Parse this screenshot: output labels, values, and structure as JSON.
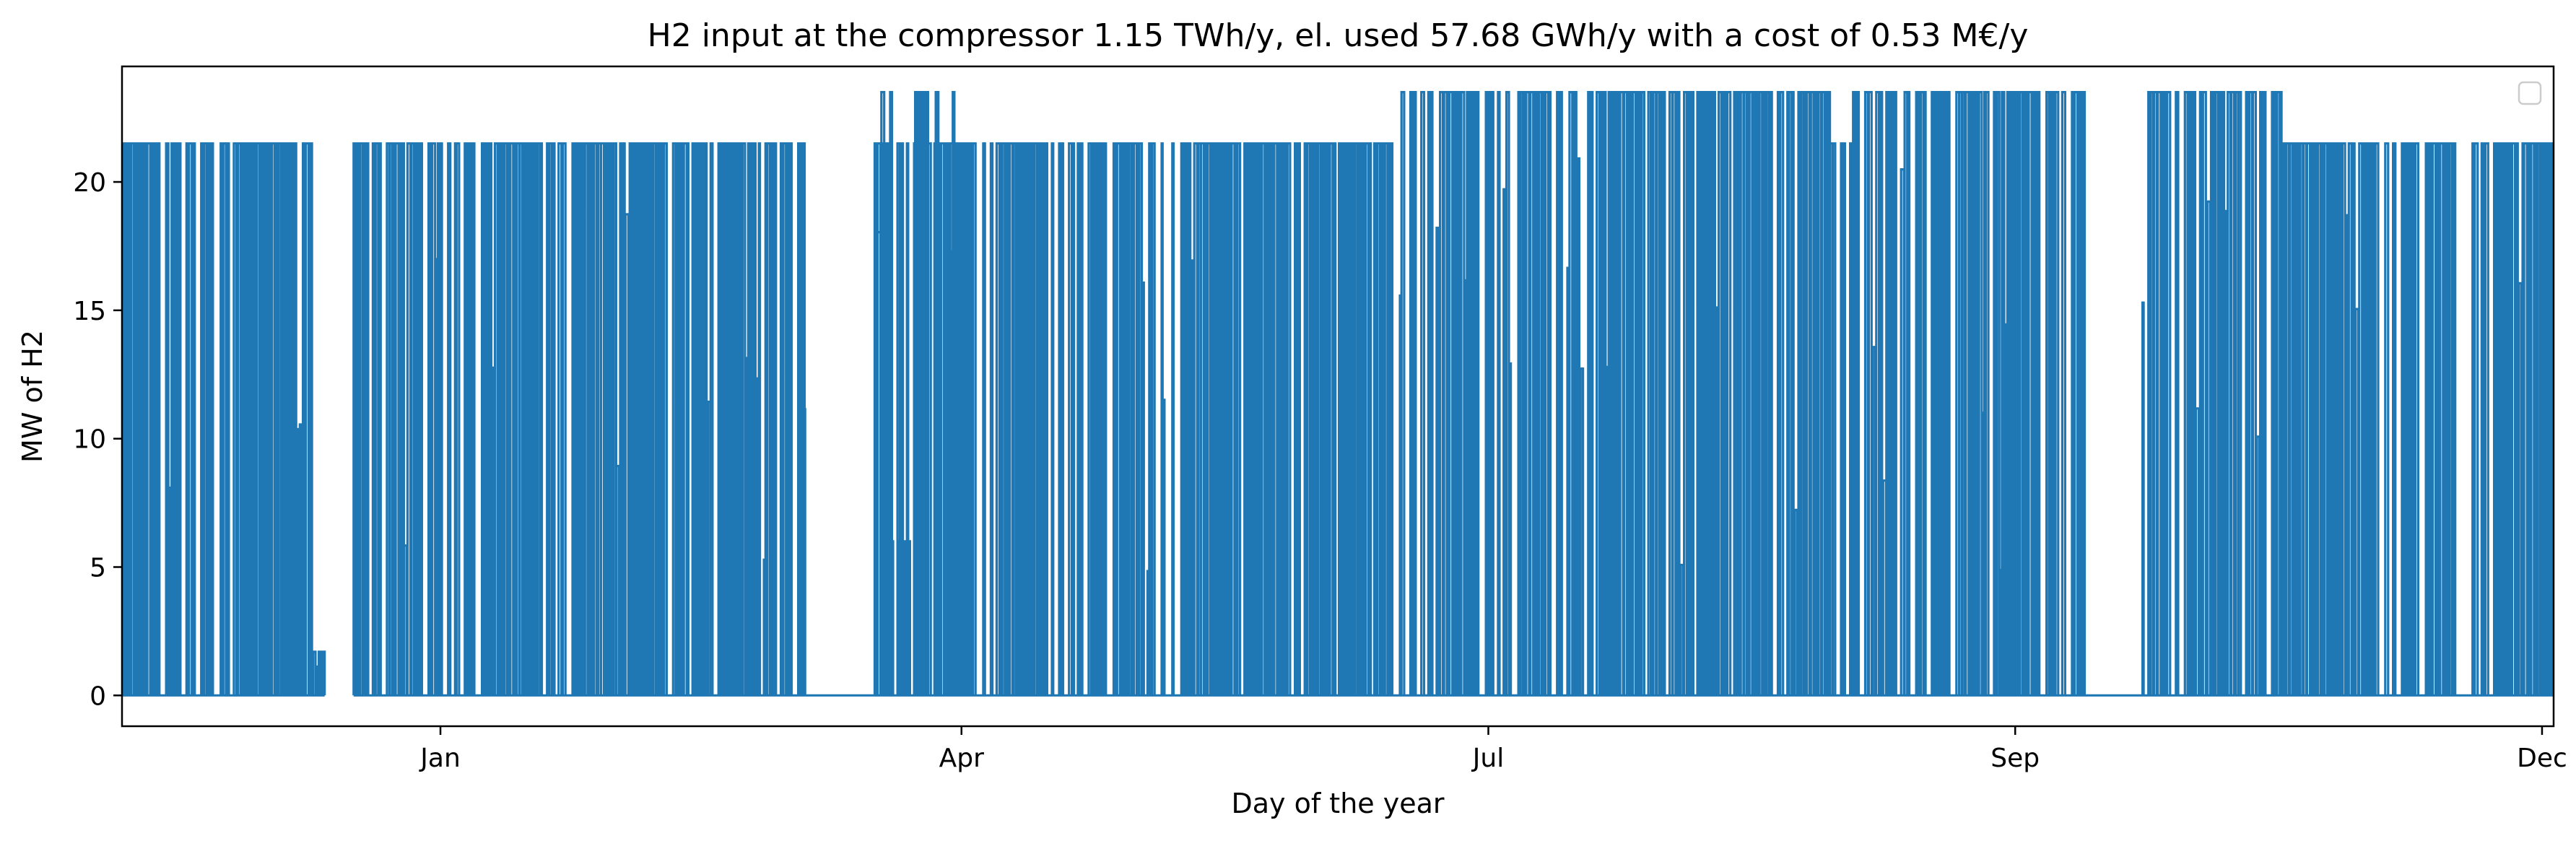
{
  "chart_data": {
    "type": "line",
    "title": "H2 input at the compressor 1.15 TWh/y, el. used 57.68 GWh/y with a cost of 0.53 M€/y",
    "xlabel": "Day of the year",
    "ylabel": "MW of H2",
    "ylim": [
      -1.2,
      24.5
    ],
    "yticks": [
      0,
      5,
      10,
      15,
      20
    ],
    "xlim": [
      -55,
      365
    ],
    "xticks": [
      {
        "label": "Jan",
        "day": 0
      },
      {
        "label": "Apr",
        "day": 90
      },
      {
        "label": "Jul",
        "day": 181
      },
      {
        "label": "Sep",
        "day": 272
      },
      {
        "label": "Dec",
        "day": 363
      }
    ],
    "grid": false,
    "legend": {
      "position": "top-right",
      "entries": []
    },
    "series": [
      {
        "color": "#1f77b4",
        "segments": [
          {
            "from": -55,
            "to": -22,
            "level": 21.5
          },
          {
            "from": -22,
            "to": -20,
            "level": 1.7
          },
          {
            "from": -15,
            "to": 5,
            "level": 21.5
          },
          {
            "from": 5,
            "to": 16,
            "level": 21.5
          },
          {
            "from": 16,
            "to": 55,
            "level": 21.5
          },
          {
            "from": 55,
            "to": 63,
            "level": 21.5
          },
          {
            "from": 63,
            "to": 75,
            "level": 0
          },
          {
            "from": 75,
            "to": 75.5,
            "level": 21.5
          },
          {
            "from": 75.5,
            "to": 90,
            "level": 21.5
          },
          {
            "from": 75.5,
            "to": 78,
            "level": 23.5
          },
          {
            "from": 78,
            "to": 82,
            "level": 6
          },
          {
            "from": 82,
            "to": 86,
            "level": 23.5
          },
          {
            "from": 86,
            "to": 87,
            "level": 0
          },
          {
            "from": 87,
            "to": 88.5,
            "level": 17.3
          },
          {
            "from": 88.5,
            "to": 89.5,
            "level": 23.5
          },
          {
            "from": 89.5,
            "to": 166,
            "level": 21.5
          },
          {
            "from": 166,
            "to": 240,
            "level": 23.5
          },
          {
            "from": 240,
            "to": 244,
            "level": 21.5
          },
          {
            "from": 244,
            "to": 284,
            "level": 23.5
          },
          {
            "from": 284,
            "to": 294,
            "level": 0
          },
          {
            "from": 294,
            "to": 295,
            "level": 15.3
          },
          {
            "from": 295,
            "to": 318,
            "level": 23.5
          },
          {
            "from": 318,
            "to": 345,
            "level": 21.5
          },
          {
            "from": 345,
            "to": 348,
            "level": 21.5
          },
          {
            "from": 348,
            "to": 351,
            "level": 0
          },
          {
            "from": 351,
            "to": 365,
            "level": 21.5
          }
        ]
      }
    ]
  }
}
